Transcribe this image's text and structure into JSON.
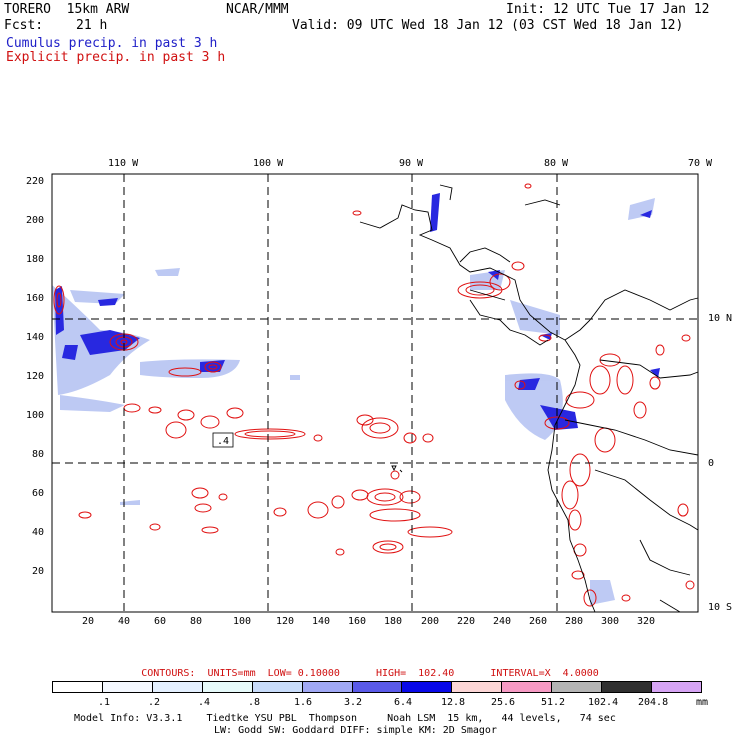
{
  "header": {
    "model": "TORERO  15km ARW",
    "org": "NCAR/MMM",
    "init": "Init: 12 UTC Tue 17 Jan 12",
    "fcst_label": "Fcst:",
    "fcst_value": "21 h",
    "valid": "Valid: 09 UTC Wed 18 Jan 12 (03 CST Wed 18 Jan 12)",
    "cumulus": "Cumulus precip. in past 3 h",
    "explicit": "Explicit precip. in past 3 h"
  },
  "map": {
    "top_ticks": [
      "110 W",
      "100 W",
      "90 W",
      "80 W",
      "70 W"
    ],
    "right_ticks": [
      "10 N",
      "0",
      "10 S"
    ],
    "y_ticks": [
      "220",
      "200",
      "180",
      "160",
      "140",
      "120",
      "100",
      "80",
      "60",
      "40",
      "20"
    ],
    "x_ticks": [
      "20",
      "40",
      "60",
      "80",
      "100",
      "120",
      "140",
      "160",
      "180",
      "200",
      "220",
      "240",
      "260",
      "280",
      "300",
      "320"
    ],
    "contour_label": ".4"
  },
  "colors": {
    "blue_precip": "#2828e0",
    "light_blue_precip": "#a8b8f0",
    "red_contour": "#e01010"
  },
  "legend": {
    "contours_text": "CONTOURS:  UNITS=mm  LOW= 0.10000      HIGH=  102.40      INTERVAL=X  4.0000",
    "units": "mm",
    "labels": [
      ".1",
      ".2",
      ".4",
      ".8",
      "1.6",
      "3.2",
      "6.4",
      "12.8",
      "25.6",
      "51.2",
      "102.4",
      "204.8"
    ],
    "colors": [
      "#ffffff",
      "#f4f8ff",
      "#e4f0ff",
      "#e6fafa",
      "#c8dcfa",
      "#a0a8f4",
      "#5a5ae8",
      "#0808e8",
      "#fcd6d6",
      "#f69ac4",
      "#b4b4b4",
      "#303030",
      "#d6a4f4"
    ]
  },
  "footer": {
    "line1": "Model Info: V3.3.1    Tiedtke YSU PBL  Thompson     Noah LSM  15 km,   44 levels,   74 sec",
    "line2": "LW: Godd SW: Goddard DIFF: simple KM: 2D Smagor"
  }
}
